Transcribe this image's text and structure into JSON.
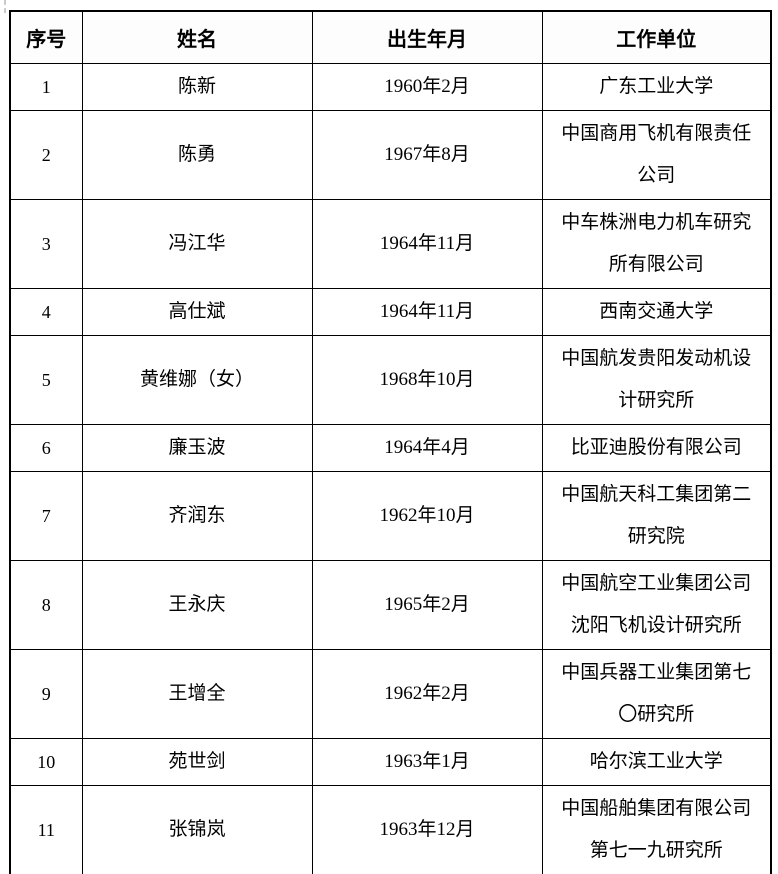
{
  "table": {
    "headers": [
      "序号",
      "姓名",
      "出生年月",
      "工作单位"
    ],
    "rows": [
      {
        "seq": "1",
        "name": "陈新",
        "birth": "1960年2月",
        "org": "广东工业大学"
      },
      {
        "seq": "2",
        "name": "陈勇",
        "birth": "1967年8月",
        "org": "中国商用飞机有限责任\n公司"
      },
      {
        "seq": "3",
        "name": "冯江华",
        "birth": "1964年11月",
        "org": "中车株洲电力机车研究\n所有限公司"
      },
      {
        "seq": "4",
        "name": "高仕斌",
        "birth": "1964年11月",
        "org": "西南交通大学"
      },
      {
        "seq": "5",
        "name": "黄维娜（女）",
        "birth": "1968年10月",
        "org": "中国航发贵阳发动机设\n计研究所"
      },
      {
        "seq": "6",
        "name": "廉玉波",
        "birth": "1964年4月",
        "org": "比亚迪股份有限公司"
      },
      {
        "seq": "7",
        "name": "齐润东",
        "birth": "1962年10月",
        "org": "中国航天科工集团第二\n研究院"
      },
      {
        "seq": "8",
        "name": "王永庆",
        "birth": "1965年2月",
        "org": "中国航空工业集团公司\n沈阳飞机设计研究所"
      },
      {
        "seq": "9",
        "name": "王增全",
        "birth": "1962年2月",
        "org": "中国兵器工业集团第七\n〇研究所"
      },
      {
        "seq": "10",
        "name": "苑世剑",
        "birth": "1963年1月",
        "org": "哈尔滨工业大学"
      },
      {
        "seq": "11",
        "name": "张锦岚",
        "birth": "1963年12月",
        "org": "中国船舶集团有限公司\n第七一九研究所"
      }
    ]
  }
}
